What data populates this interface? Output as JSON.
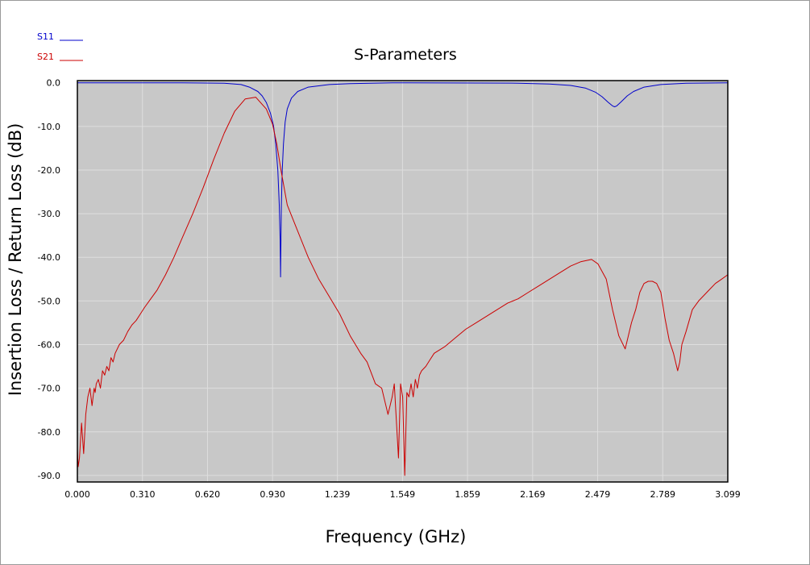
{
  "chart_data": {
    "type": "line",
    "title": "S-Parameters",
    "xlabel": "Frequency (GHz)",
    "ylabel": "Insertion Loss / Return Loss (dB)",
    "xlim": [
      0,
      3.099
    ],
    "ylim": [
      -91.5,
      0.5
    ],
    "x_ticks": [
      "0.000",
      "0.310",
      "0.620",
      "0.930",
      "1.239",
      "1.549",
      "1.859",
      "2.169",
      "2.479",
      "2.789",
      "3.099"
    ],
    "y_ticks": [
      "0.0",
      "-10.0",
      "-20.0",
      "-30.0",
      "-40.0",
      "-50.0",
      "-60.0",
      "-70.0",
      "-80.0",
      "-90.0"
    ],
    "grid": true,
    "legend_position": "top-left",
    "plot_background": "#c8c8c8",
    "series": [
      {
        "name": "S11",
        "color": "#0000cc",
        "x": [
          0,
          0.5,
          0.7,
          0.78,
          0.82,
          0.86,
          0.88,
          0.9,
          0.92,
          0.935,
          0.945,
          0.955,
          0.962,
          0.966,
          0.968,
          0.97,
          0.972,
          0.976,
          0.982,
          0.99,
          1.0,
          1.02,
          1.05,
          1.1,
          1.2,
          1.3,
          1.5,
          2.1,
          2.25,
          2.35,
          2.42,
          2.47,
          2.5,
          2.53,
          2.55,
          2.56,
          2.57,
          2.59,
          2.62,
          2.65,
          2.7,
          2.78,
          2.9,
          3.099
        ],
        "y": [
          0,
          0,
          -0.1,
          -0.4,
          -1.0,
          -2.0,
          -3.0,
          -4.5,
          -7,
          -10,
          -14,
          -20,
          -28,
          -36,
          -44.5,
          -36,
          -28,
          -20,
          -14,
          -9,
          -6,
          -3.5,
          -2,
          -1.0,
          -0.4,
          -0.2,
          0,
          -0.1,
          -0.3,
          -0.6,
          -1.2,
          -2.2,
          -3.2,
          -4.5,
          -5.3,
          -5.5,
          -5.3,
          -4.4,
          -3.0,
          -2.0,
          -1.0,
          -0.4,
          -0.1,
          0
        ]
      },
      {
        "name": "S21",
        "color": "#cc0000",
        "x": [
          0.0,
          0.004,
          0.01,
          0.02,
          0.03,
          0.04,
          0.05,
          0.06,
          0.07,
          0.08,
          0.085,
          0.09,
          0.1,
          0.11,
          0.12,
          0.13,
          0.14,
          0.15,
          0.16,
          0.17,
          0.18,
          0.2,
          0.22,
          0.24,
          0.26,
          0.28,
          0.3,
          0.32,
          0.35,
          0.38,
          0.42,
          0.46,
          0.5,
          0.55,
          0.6,
          0.65,
          0.7,
          0.75,
          0.8,
          0.85,
          0.9,
          0.93,
          0.95,
          0.97,
          1.0,
          1.05,
          1.1,
          1.15,
          1.2,
          1.25,
          1.3,
          1.35,
          1.38,
          1.42,
          1.45,
          1.48,
          1.5,
          1.51,
          1.53,
          1.54,
          1.55,
          1.56,
          1.57,
          1.58,
          1.59,
          1.6,
          1.61,
          1.62,
          1.63,
          1.64,
          1.66,
          1.68,
          1.7,
          1.75,
          1.8,
          1.85,
          1.9,
          1.95,
          2.0,
          2.05,
          2.1,
          2.15,
          2.2,
          2.25,
          2.3,
          2.35,
          2.4,
          2.45,
          2.48,
          2.52,
          2.55,
          2.58,
          2.61,
          2.62,
          2.64,
          2.66,
          2.68,
          2.7,
          2.72,
          2.74,
          2.76,
          2.78,
          2.8,
          2.82,
          2.84,
          2.86,
          2.87,
          2.88,
          2.9,
          2.93,
          2.96,
          3.0,
          3.04,
          3.07,
          3.099
        ],
        "y": [
          -84,
          -88,
          -86,
          -78,
          -85,
          -76,
          -72,
          -70,
          -74,
          -70,
          -71,
          -69,
          -68,
          -70,
          -66,
          -67,
          -65,
          -66,
          -63,
          -64,
          -62,
          -60,
          -59,
          -57,
          -55.5,
          -54.5,
          -53,
          -51.5,
          -49.5,
          -47.5,
          -44,
          -40,
          -35.5,
          -30,
          -24,
          -17.5,
          -11.5,
          -6.5,
          -3.7,
          -3.3,
          -6,
          -9.5,
          -14,
          -20,
          -28,
          -34,
          -40,
          -45,
          -49,
          -53,
          -58,
          -62,
          -64,
          -69,
          -70,
          -76,
          -72,
          -69,
          -86,
          -69,
          -72,
          -90,
          -71,
          -72,
          -69,
          -72,
          -68,
          -70,
          -67,
          -66,
          -65,
          -63.5,
          -62,
          -60.5,
          -58.5,
          -56.5,
          -55,
          -53.5,
          -52,
          -50.5,
          -49.5,
          -48,
          -46.5,
          -45,
          -43.5,
          -42,
          -41,
          -40.5,
          -41.5,
          -45,
          -52,
          -58,
          -61,
          -59,
          -55,
          -52,
          -48,
          -46,
          -45.5,
          -45.5,
          -46,
          -48,
          -54,
          -59,
          -62,
          -66,
          -64,
          -60,
          -57,
          -52,
          -50,
          -48,
          -46,
          -45,
          -44
        ]
      }
    ]
  }
}
